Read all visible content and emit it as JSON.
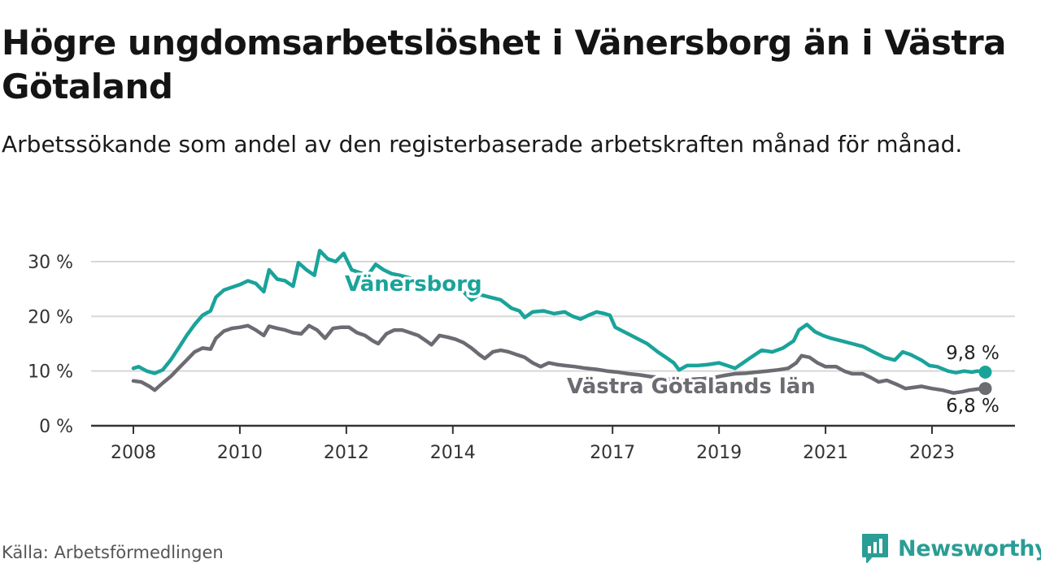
{
  "title": "Högre ungdomsarbetslöshet i Vänersborg än i Västra Götaland",
  "subtitle": "Arbetssökande som andel av den registerbaserade arbetskraften månad för månad.",
  "source": "Källa: Arbetsförmedlingen",
  "brand": {
    "name": "Newsworthy",
    "icon": "newsworthy-logo-icon"
  },
  "colors": {
    "vanersborg": "#1aa39a",
    "vastra": "#6b6b72",
    "grid": "#d8d8d8",
    "axis": "#333333",
    "text": "#333333"
  },
  "chart_data": {
    "type": "line",
    "title": "Högre ungdomsarbetslöshet i Vänersborg än i Västra Götaland",
    "xlabel": "",
    "ylabel": "",
    "ylim": [
      0,
      32
    ],
    "xlim": [
      2007.9,
      2024.3
    ],
    "yticks": [
      0,
      10,
      20,
      30
    ],
    "ytick_labels": [
      "0 %",
      "10 %",
      "20 %",
      "30 %"
    ],
    "xticks": [
      2008,
      2010,
      2012,
      2014,
      2017,
      2019,
      2021,
      2023
    ],
    "xtick_labels": [
      "2008",
      "2010",
      "2012",
      "2014",
      "2017",
      "2019",
      "2021",
      "2023"
    ],
    "grid": true,
    "series": [
      {
        "name": "Vänersborg",
        "label": "Vänersborg",
        "end_label": "9,8 %",
        "points": [
          [
            2008.0,
            10.5
          ],
          [
            2008.1,
            10.8
          ],
          [
            2008.25,
            10.0
          ],
          [
            2008.4,
            9.6
          ],
          [
            2008.55,
            10.2
          ],
          [
            2008.7,
            12.0
          ],
          [
            2008.85,
            14.2
          ],
          [
            2009.0,
            16.5
          ],
          [
            2009.15,
            18.5
          ],
          [
            2009.3,
            20.2
          ],
          [
            2009.45,
            21.0
          ],
          [
            2009.55,
            23.5
          ],
          [
            2009.7,
            24.8
          ],
          [
            2009.85,
            25.3
          ],
          [
            2010.0,
            25.8
          ],
          [
            2010.15,
            26.5
          ],
          [
            2010.3,
            26.0
          ],
          [
            2010.45,
            24.5
          ],
          [
            2010.55,
            28.5
          ],
          [
            2010.7,
            26.8
          ],
          [
            2010.85,
            26.5
          ],
          [
            2011.0,
            25.5
          ],
          [
            2011.1,
            29.8
          ],
          [
            2011.25,
            28.5
          ],
          [
            2011.4,
            27.5
          ],
          [
            2011.5,
            32.0
          ],
          [
            2011.65,
            30.5
          ],
          [
            2011.8,
            30.0
          ],
          [
            2011.95,
            31.5
          ],
          [
            2012.1,
            28.5
          ],
          [
            2012.25,
            28.0
          ],
          [
            2012.4,
            27.5
          ],
          [
            2012.55,
            29.5
          ],
          [
            2012.7,
            28.5
          ],
          [
            2012.85,
            27.8
          ],
          [
            2013.0,
            27.5
          ],
          [
            2013.2,
            27.0
          ],
          [
            2013.4,
            26.5
          ],
          [
            2013.6,
            25.5
          ],
          [
            2013.8,
            25.0
          ],
          [
            2014.0,
            25.2
          ],
          [
            2014.2,
            24.5
          ],
          [
            2014.35,
            23.0
          ],
          [
            2014.5,
            24.0
          ],
          [
            2014.7,
            23.5
          ],
          [
            2014.9,
            23.0
          ],
          [
            2015.1,
            21.5
          ],
          [
            2015.25,
            21.0
          ],
          [
            2015.35,
            19.8
          ],
          [
            2015.5,
            20.8
          ],
          [
            2015.7,
            21.0
          ],
          [
            2015.9,
            20.5
          ],
          [
            2016.1,
            20.8
          ],
          [
            2016.25,
            20.0
          ],
          [
            2016.4,
            19.5
          ],
          [
            2016.55,
            20.2
          ],
          [
            2016.7,
            20.8
          ],
          [
            2016.85,
            20.5
          ],
          [
            2016.95,
            20.2
          ],
          [
            2017.05,
            18.0
          ],
          [
            2017.25,
            17.0
          ],
          [
            2017.45,
            16.0
          ],
          [
            2017.65,
            15.0
          ],
          [
            2017.85,
            13.5
          ],
          [
            2018.0,
            12.5
          ],
          [
            2018.15,
            11.5
          ],
          [
            2018.25,
            10.2
          ],
          [
            2018.4,
            11.0
          ],
          [
            2018.6,
            11.0
          ],
          [
            2018.8,
            11.2
          ],
          [
            2019.0,
            11.5
          ],
          [
            2019.15,
            11.0
          ],
          [
            2019.3,
            10.5
          ],
          [
            2019.45,
            11.5
          ],
          [
            2019.6,
            12.5
          ],
          [
            2019.8,
            13.8
          ],
          [
            2020.0,
            13.5
          ],
          [
            2020.2,
            14.2
          ],
          [
            2020.4,
            15.5
          ],
          [
            2020.5,
            17.5
          ],
          [
            2020.65,
            18.5
          ],
          [
            2020.8,
            17.2
          ],
          [
            2020.95,
            16.5
          ],
          [
            2021.1,
            16.0
          ],
          [
            2021.3,
            15.5
          ],
          [
            2021.5,
            15.0
          ],
          [
            2021.7,
            14.5
          ],
          [
            2021.9,
            13.5
          ],
          [
            2022.1,
            12.5
          ],
          [
            2022.3,
            12.0
          ],
          [
            2022.45,
            13.5
          ],
          [
            2022.6,
            13.0
          ],
          [
            2022.8,
            12.0
          ],
          [
            2022.95,
            11.0
          ],
          [
            2023.1,
            10.8
          ],
          [
            2023.3,
            10.0
          ],
          [
            2023.45,
            9.7
          ],
          [
            2023.6,
            10.0
          ],
          [
            2023.75,
            9.8
          ],
          [
            2023.85,
            10.0
          ],
          [
            2024.0,
            9.8
          ]
        ]
      },
      {
        "name": "Västra Götalands län",
        "label": "Västra Götalands län",
        "end_label": "6,8 %",
        "points": [
          [
            2008.0,
            8.2
          ],
          [
            2008.15,
            8.0
          ],
          [
            2008.3,
            7.2
          ],
          [
            2008.4,
            6.5
          ],
          [
            2008.55,
            7.8
          ],
          [
            2008.7,
            9.0
          ],
          [
            2008.85,
            10.5
          ],
          [
            2009.0,
            12.0
          ],
          [
            2009.15,
            13.5
          ],
          [
            2009.3,
            14.2
          ],
          [
            2009.45,
            14.0
          ],
          [
            2009.55,
            16.0
          ],
          [
            2009.7,
            17.3
          ],
          [
            2009.85,
            17.8
          ],
          [
            2010.0,
            18.0
          ],
          [
            2010.15,
            18.3
          ],
          [
            2010.3,
            17.5
          ],
          [
            2010.45,
            16.5
          ],
          [
            2010.55,
            18.2
          ],
          [
            2010.7,
            17.8
          ],
          [
            2010.85,
            17.5
          ],
          [
            2011.0,
            17.0
          ],
          [
            2011.15,
            16.8
          ],
          [
            2011.3,
            18.3
          ],
          [
            2011.45,
            17.5
          ],
          [
            2011.6,
            16.0
          ],
          [
            2011.75,
            17.8
          ],
          [
            2011.9,
            18.0
          ],
          [
            2012.05,
            18.0
          ],
          [
            2012.2,
            17.0
          ],
          [
            2012.35,
            16.5
          ],
          [
            2012.5,
            15.5
          ],
          [
            2012.6,
            15.0
          ],
          [
            2012.75,
            16.8
          ],
          [
            2012.9,
            17.5
          ],
          [
            2013.05,
            17.5
          ],
          [
            2013.2,
            17.0
          ],
          [
            2013.35,
            16.5
          ],
          [
            2013.5,
            15.5
          ],
          [
            2013.6,
            14.8
          ],
          [
            2013.75,
            16.5
          ],
          [
            2013.9,
            16.2
          ],
          [
            2014.05,
            15.8
          ],
          [
            2014.2,
            15.2
          ],
          [
            2014.35,
            14.2
          ],
          [
            2014.5,
            13.0
          ],
          [
            2014.6,
            12.3
          ],
          [
            2014.75,
            13.5
          ],
          [
            2014.9,
            13.8
          ],
          [
            2015.05,
            13.5
          ],
          [
            2015.2,
            13.0
          ],
          [
            2015.35,
            12.5
          ],
          [
            2015.5,
            11.5
          ],
          [
            2015.65,
            10.8
          ],
          [
            2015.8,
            11.5
          ],
          [
            2015.95,
            11.2
          ],
          [
            2016.1,
            11.0
          ],
          [
            2016.3,
            10.8
          ],
          [
            2016.5,
            10.5
          ],
          [
            2016.7,
            10.3
          ],
          [
            2016.9,
            10.0
          ],
          [
            2017.1,
            9.8
          ],
          [
            2017.3,
            9.5
          ],
          [
            2017.5,
            9.3
          ],
          [
            2017.7,
            9.0
          ],
          [
            2017.9,
            8.8
          ],
          [
            2018.1,
            8.5
          ],
          [
            2018.3,
            8.3
          ],
          [
            2018.5,
            8.5
          ],
          [
            2018.7,
            8.6
          ],
          [
            2018.9,
            8.8
          ],
          [
            2019.1,
            9.2
          ],
          [
            2019.3,
            9.5
          ],
          [
            2019.5,
            9.6
          ],
          [
            2019.7,
            9.8
          ],
          [
            2019.9,
            10.0
          ],
          [
            2020.1,
            10.2
          ],
          [
            2020.3,
            10.5
          ],
          [
            2020.45,
            11.5
          ],
          [
            2020.55,
            12.8
          ],
          [
            2020.7,
            12.5
          ],
          [
            2020.85,
            11.5
          ],
          [
            2021.0,
            10.8
          ],
          [
            2021.2,
            10.8
          ],
          [
            2021.35,
            10.0
          ],
          [
            2021.5,
            9.5
          ],
          [
            2021.7,
            9.5
          ],
          [
            2021.85,
            8.8
          ],
          [
            2022.0,
            8.0
          ],
          [
            2022.15,
            8.3
          ],
          [
            2022.35,
            7.5
          ],
          [
            2022.5,
            6.8
          ],
          [
            2022.65,
            7.0
          ],
          [
            2022.8,
            7.2
          ],
          [
            2023.0,
            6.8
          ],
          [
            2023.2,
            6.5
          ],
          [
            2023.4,
            6.0
          ],
          [
            2023.55,
            6.2
          ],
          [
            2023.7,
            6.5
          ],
          [
            2023.85,
            6.7
          ],
          [
            2024.0,
            6.8
          ]
        ]
      }
    ]
  }
}
